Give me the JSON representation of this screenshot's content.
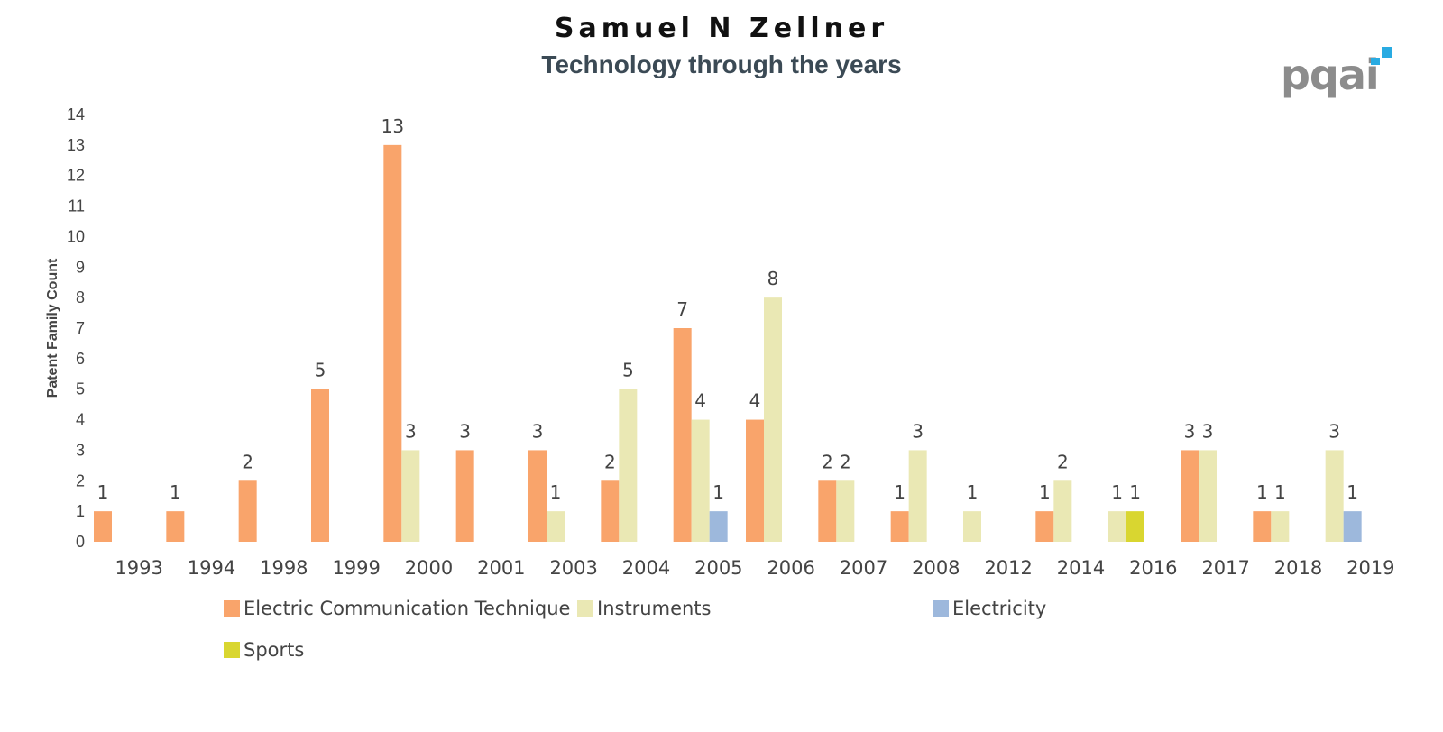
{
  "title": "Samuel N Zellner",
  "subtitle": "Technology through the years",
  "logo": {
    "text": "pqai",
    "accent_color": "#29abe2"
  },
  "chart_data": {
    "type": "bar",
    "title": "Samuel N Zellner",
    "subtitle": "Technology through the years",
    "xlabel": "",
    "ylabel": "Patent Family Count",
    "ylim": [
      0,
      14
    ],
    "yticks": [
      0,
      1,
      2,
      3,
      4,
      5,
      6,
      7,
      8,
      9,
      10,
      11,
      12,
      13,
      14
    ],
    "grid": false,
    "legend_placement": "bottom",
    "categories": [
      "1993",
      "1994",
      "1998",
      "1999",
      "2000",
      "2001",
      "2003",
      "2004",
      "2005",
      "2006",
      "2007",
      "2008",
      "2012",
      "2014",
      "2016",
      "2017",
      "2018",
      "2019"
    ],
    "series": [
      {
        "name": "Electric Communication Technique",
        "color": "#f9a46b",
        "values": [
          1,
          1,
          2,
          5,
          13,
          3,
          3,
          2,
          7,
          4,
          2,
          1,
          null,
          1,
          null,
          3,
          1,
          null
        ]
      },
      {
        "name": "Instruments",
        "color": "#eae8b4",
        "values": [
          null,
          null,
          null,
          null,
          3,
          null,
          1,
          5,
          4,
          8,
          2,
          3,
          1,
          2,
          1,
          3,
          1,
          3
        ]
      },
      {
        "name": "Electricity",
        "color": "#9db8dc",
        "values": [
          null,
          null,
          null,
          null,
          null,
          null,
          null,
          null,
          1,
          null,
          null,
          null,
          null,
          null,
          null,
          null,
          null,
          1
        ]
      },
      {
        "name": "Sports",
        "color": "#d9d630",
        "values": [
          null,
          null,
          null,
          null,
          null,
          null,
          null,
          null,
          null,
          null,
          null,
          null,
          null,
          null,
          1,
          null,
          null,
          null
        ]
      }
    ]
  }
}
